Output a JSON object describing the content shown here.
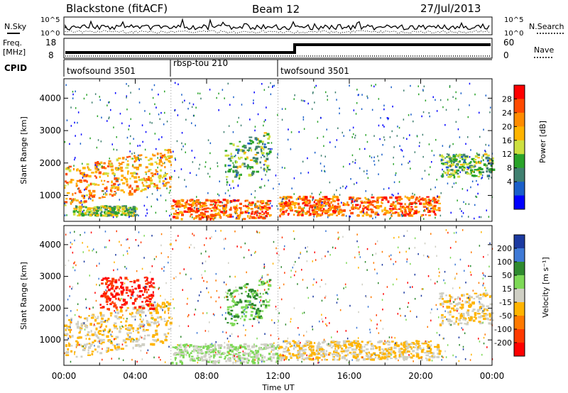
{
  "header": {
    "radar": "Blackstone (fitACF)",
    "beam": "Beam 12",
    "date": "27/Jul/2013"
  },
  "nsky_panel": {
    "left_label": "N.Sky",
    "right_label": "N.Search",
    "left_ticks": [
      "10^5",
      "10^0"
    ],
    "right_ticks": [
      "10^5",
      "10^0"
    ]
  },
  "freq_panel": {
    "left_label_1": "Freq.",
    "left_label_2": "[MHz]",
    "right_label": "Nave",
    "left_ticks": [
      "18",
      "8"
    ],
    "right_ticks": [
      "60",
      "0"
    ]
  },
  "cpid_panel": {
    "label": "CPID",
    "segments": [
      {
        "name": "twofsound 3501",
        "start": 0,
        "end": 6
      },
      {
        "name": "rbsp-tou 210",
        "start": 6,
        "end": 12
      },
      {
        "name": "twofsound 3501",
        "start": 12,
        "end": 24
      }
    ]
  },
  "chart_data": [
    {
      "type": "heatmap",
      "name": "power",
      "ylabel": "Slant Range [km]",
      "xlabel": "Time UT",
      "xlim": [
        0,
        24
      ],
      "ylim": [
        200,
        4600
      ],
      "yticks": [
        "1000",
        "2000",
        "3000",
        "4000"
      ],
      "xticks": [
        "00:00",
        "04:00",
        "08:00",
        "12:00",
        "16:00",
        "20:00",
        "00:00"
      ],
      "colorbar": {
        "label": "Power [dB]",
        "ticks": [
          "28",
          "24",
          "20",
          "16",
          "12",
          "8",
          "4"
        ],
        "colors": [
          "#ff0000",
          "#ff4a00",
          "#ff8c00",
          "#ffb400",
          "#cde040",
          "#2aa32a",
          "#408070",
          "#1a5fc9",
          "#0000ff"
        ]
      },
      "features": [
        {
          "t0": 0.0,
          "t1": 6.0,
          "r0": 1000,
          "r1": 2200,
          "level": 22
        },
        {
          "t0": 0.5,
          "t1": 4.0,
          "r0": 400,
          "r1": 700,
          "level": 14
        },
        {
          "t0": 6.0,
          "t1": 11.5,
          "r0": 300,
          "r1": 900,
          "level": 26
        },
        {
          "t0": 9.0,
          "t1": 11.5,
          "r0": 1400,
          "r1": 2600,
          "level": 12
        },
        {
          "t0": 12.0,
          "t1": 21.0,
          "r0": 400,
          "r1": 1000,
          "level": 26
        },
        {
          "t0": 21.0,
          "t1": 24.0,
          "r0": 1600,
          "r1": 2300,
          "level": 12
        }
      ]
    },
    {
      "type": "heatmap",
      "name": "velocity",
      "ylabel": "Slant Range [km]",
      "xlabel": "Time UT",
      "xlim": [
        0,
        24
      ],
      "ylim": [
        200,
        4600
      ],
      "yticks": [
        "1000",
        "2000",
        "3000",
        "4000"
      ],
      "xticks": [
        "00:00",
        "04:00",
        "08:00",
        "12:00",
        "16:00",
        "20:00",
        "00:00"
      ],
      "colorbar": {
        "label": "Velocity [m s⁻¹]",
        "ticks": [
          "200",
          "100",
          "50",
          "15",
          "-15",
          "-50",
          "-100",
          "-200"
        ],
        "colors": [
          "#1c3aa0",
          "#3f7ad6",
          "#2f8a2f",
          "#7ed957",
          "#cfcfc4",
          "#ffb400",
          "#ff7a00",
          "#ff3a00",
          "#ff0000"
        ]
      },
      "features": [
        {
          "t0": 0.0,
          "t1": 6.0,
          "r0": 700,
          "r1": 2000,
          "velocity": -15
        },
        {
          "t0": 2.0,
          "t1": 5.0,
          "r0": 2000,
          "r1": 3000,
          "velocity": -200
        },
        {
          "t0": 6.0,
          "t1": 12.0,
          "r0": 300,
          "r1": 900,
          "velocity": 15
        },
        {
          "t0": 9.0,
          "t1": 11.5,
          "r0": 1400,
          "r1": 2600,
          "velocity": 50
        },
        {
          "t0": 12.0,
          "t1": 21.0,
          "r0": 400,
          "r1": 1000,
          "velocity": -15
        },
        {
          "t0": 21.0,
          "t1": 24.0,
          "r0": 1500,
          "r1": 2500,
          "velocity": -15
        }
      ]
    }
  ]
}
